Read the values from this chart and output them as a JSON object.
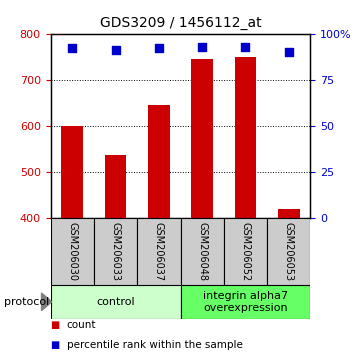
{
  "title": "GDS3209 / 1456112_at",
  "samples": [
    "GSM206030",
    "GSM206033",
    "GSM206037",
    "GSM206048",
    "GSM206052",
    "GSM206053"
  ],
  "counts": [
    600,
    537,
    645,
    745,
    750,
    420
  ],
  "percentiles": [
    92,
    91,
    92,
    93,
    93,
    90
  ],
  "ylim_left": [
    400,
    800
  ],
  "ylim_right": [
    0,
    100
  ],
  "yticks_left": [
    400,
    500,
    600,
    700,
    800
  ],
  "yticks_right": [
    0,
    25,
    50,
    75,
    100
  ],
  "bar_color": "#cc0000",
  "dot_color": "#0000cc",
  "bar_width": 0.5,
  "groups": [
    {
      "label": "control",
      "samples": [
        0,
        1,
        2
      ],
      "color": "#ccffcc"
    },
    {
      "label": "integrin alpha7\noverexpression",
      "samples": [
        3,
        4,
        5
      ],
      "color": "#66ff66"
    }
  ],
  "protocol_label": "protocol",
  "legend_count_label": "count",
  "legend_percentile_label": "percentile rank within the sample",
  "tick_area_color": "#cccccc",
  "title_fontsize": 10,
  "tick_fontsize": 8,
  "label_fontsize": 7,
  "group_fontsize": 8,
  "legend_fontsize": 7.5
}
